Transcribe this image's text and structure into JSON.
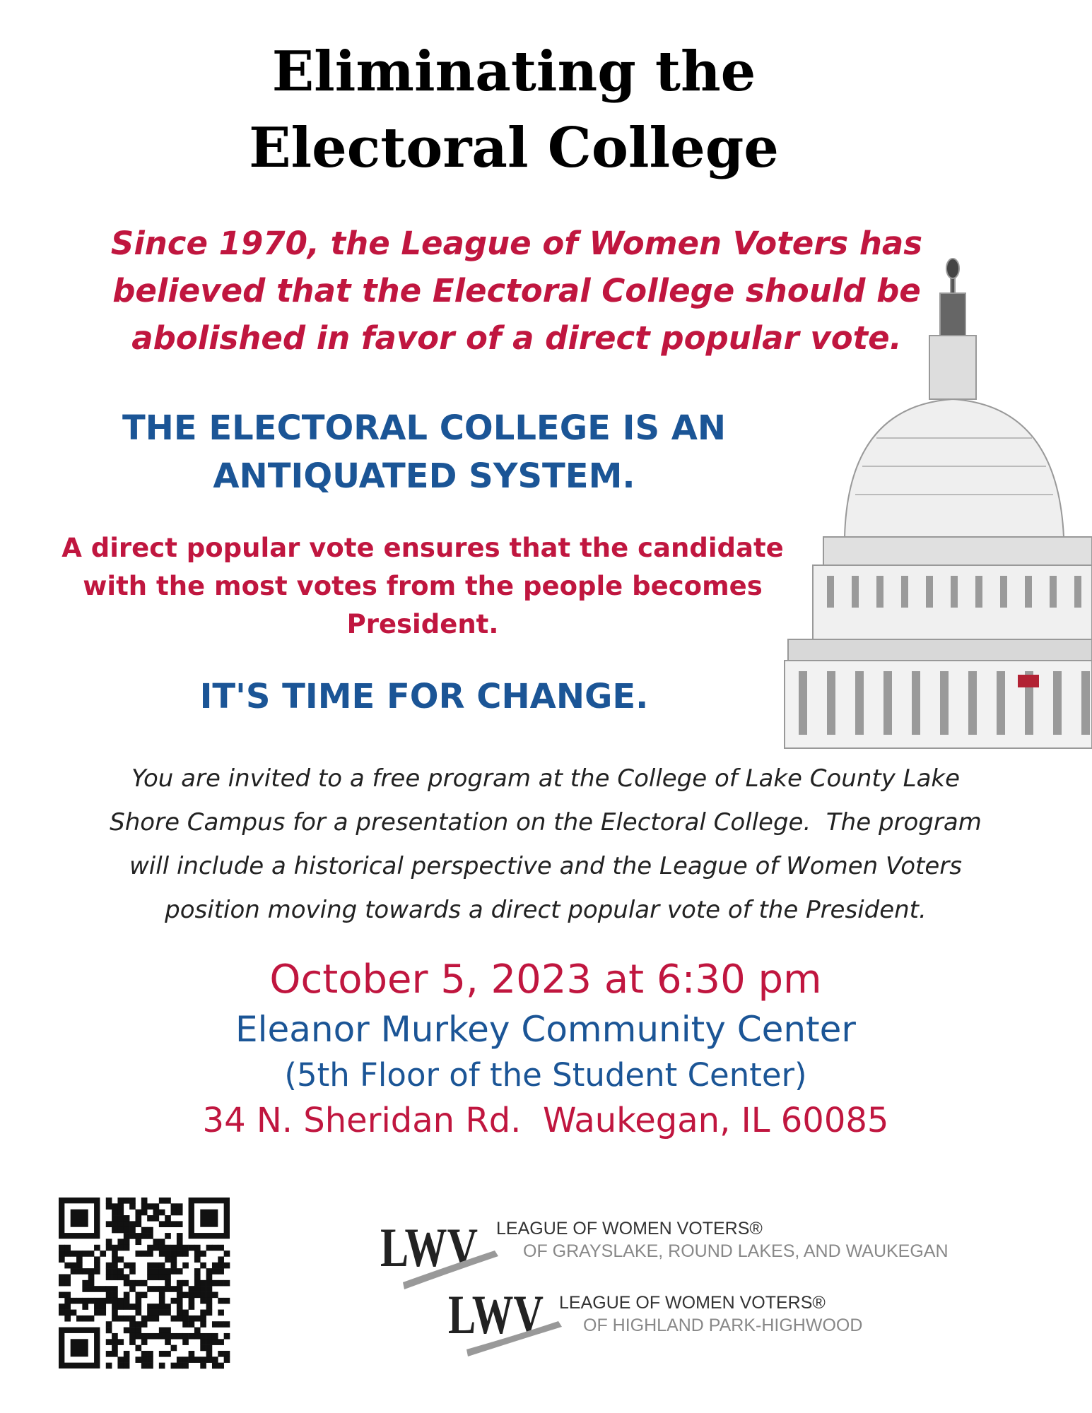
{
  "title": [
    "Eliminating the",
    "Electoral College"
  ],
  "statement": [
    "Since 1970, the League of Women Voters has",
    "believed that the Electoral College should be",
    "abolished in favor of a direct popular vote."
  ],
  "headline": [
    "THE ELECTORAL COLLEGE IS AN",
    "ANTIQUATED SYSTEM."
  ],
  "argument": [
    "A direct popular vote ensures that the candidate",
    "with the most votes from the people becomes",
    "President."
  ],
  "call_to_action": "IT'S TIME FOR CHANGE.",
  "invitation": [
    "You are invited to a free program at the College of Lake County Lake",
    "Shore Campus for a presentation on the Electoral College.  The program",
    "will include a historical perspective and the League of Women Voters",
    "position moving towards a direct popular vote of the President."
  ],
  "event": {
    "date": "October 5, 2023 at 6:30 pm",
    "venue": "Eleanor Murkey Community Center",
    "location": "(5th Floor of the Student Center)",
    "address": "34 N. Sheridan Rd.  Waukegan, IL 60085"
  },
  "logos": [
    {
      "mark": "LWV",
      "name": "LEAGUE OF WOMEN VOTERS®",
      "chapter": "OF GRAYSLAKE, ROUND LAKES, AND WAUKEGAN"
    },
    {
      "mark": "LWV",
      "name": "LEAGUE OF WOMEN VOTERS®",
      "chapter": "OF HIGHLAND PARK-HIGHWOOD"
    }
  ]
}
